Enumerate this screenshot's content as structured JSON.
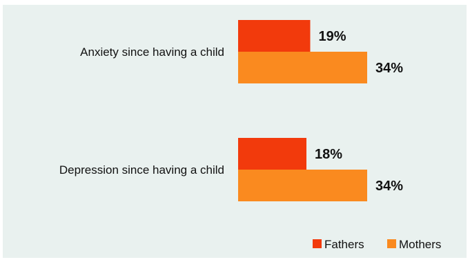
{
  "chart_data": {
    "type": "bar",
    "orientation": "horizontal",
    "categories": [
      "Anxiety since having a child",
      "Depression since having a child"
    ],
    "series": [
      {
        "name": "Fathers",
        "values": [
          19,
          18
        ],
        "color": "#f23a0c",
        "labels": [
          "19%",
          "18%"
        ]
      },
      {
        "name": "Mothers",
        "values": [
          34,
          34
        ],
        "color": "#fa8a1f",
        "labels": [
          "34%",
          "34%"
        ]
      }
    ],
    "value_suffix": "%",
    "title": "",
    "xlabel": "",
    "ylabel": "",
    "xlim": [
      0,
      34
    ],
    "grid": false,
    "legend": "bottom-right",
    "background": "#e9f1ef"
  }
}
